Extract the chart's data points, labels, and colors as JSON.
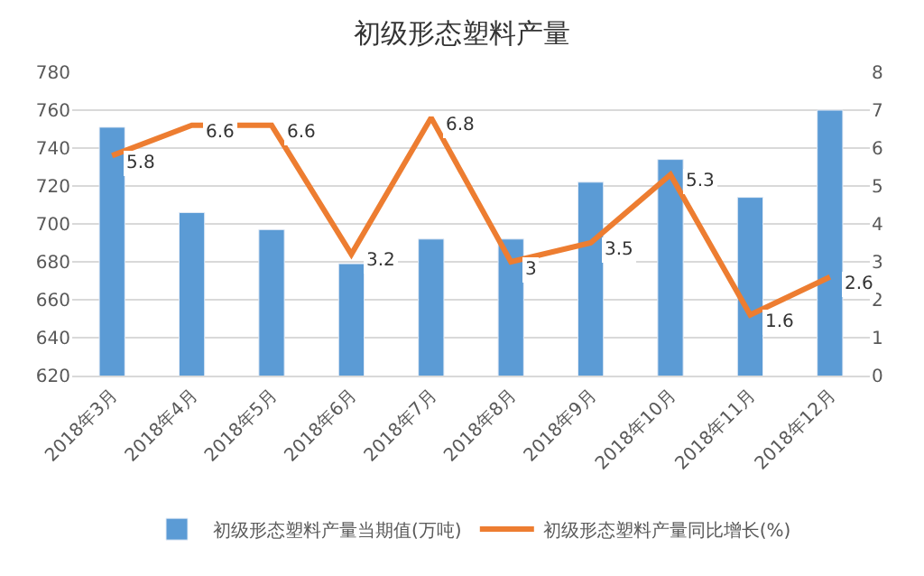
{
  "chart_data": {
    "type": "bar",
    "title": "初级形态塑料产量",
    "categories": [
      "2018年3月",
      "2018年4月",
      "2018年5月",
      "2018年6月",
      "2018年7月",
      "2018年8月",
      "2018年9月",
      "2018年10月",
      "2018年11月",
      "2018年12月"
    ],
    "series": [
      {
        "name": "初级形态塑料产量当期值(万吨)",
        "color": "#5b9bd5",
        "values": [
          751,
          706,
          697,
          679,
          692,
          692,
          722,
          734,
          714,
          760
        ]
      },
      {
        "name": "初级形态塑料产量同比增长(%)",
        "type": "line",
        "axis": "y2",
        "color": "#ed7d31",
        "values": [
          5.8,
          6.6,
          6.6,
          3.2,
          6.8,
          3,
          3.5,
          5.3,
          1.6,
          2.6
        ],
        "value_labels": [
          "5.8",
          "6.6",
          "6.6",
          "3.2",
          "6.8",
          "3",
          "3.5",
          "5.3",
          "1.6",
          "2.6"
        ]
      }
    ],
    "ylim": [
      620,
      780
    ],
    "yticks": [
      620,
      640,
      660,
      680,
      700,
      720,
      740,
      760,
      780
    ],
    "y2lim": [
      0,
      8
    ],
    "y2ticks": [
      0,
      1,
      2,
      3,
      4,
      5,
      6,
      7,
      8
    ],
    "grid": "y",
    "legend": "bottom",
    "marker": "none",
    "line_style": "solid"
  }
}
